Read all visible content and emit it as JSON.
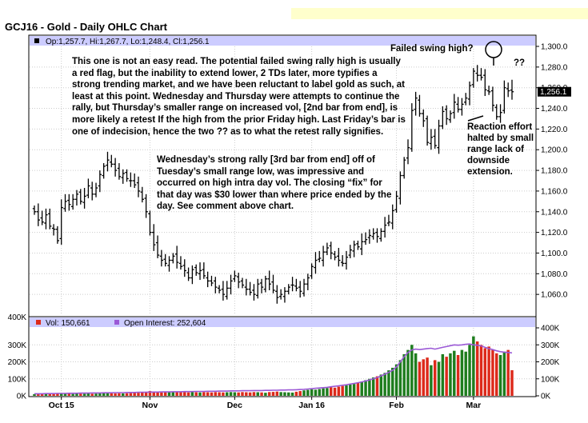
{
  "title": "GCJ16 - Gold - Daily OHLC Chart",
  "price_info": {
    "open": "Op:1,257.7,",
    "high": "Hi:1,267.7,",
    "low": "Lo:1,248.4,",
    "close": "Cl:1,256.1"
  },
  "last_price_tag": "1,256.1",
  "volume_legend": {
    "vol": "Vol: 150,661",
    "oi": "Open Interest: 252,604"
  },
  "annotations": {
    "main_comment": "This one is not an easy read.  The potential failed swing rally high is usually a red flag, but the inability to extend lower, 2 TDs later, more typifies a strong trending market, and we have been reluctant to label gold as such, at least at this point.  Wednesday and Thursday were attempts to continue the rally, but Thursday’s smaller range on increased vol, [2nd bar from end], is more likely a retest If the high from the prior Friday high.  Last Friday’s bar is one of indecision, hence the two ?? as to what the retest rally signifies.",
    "wednesday_comment": "Wednesday’s strong rally [3rd bar from end] off of Tuesday’s small range low, was impressive and occurred on high intra day vol.  The closing “fix” for that day was $30 lower than where price ended by the day.  See comment above chart.",
    "failed_swing": "Failed swing high?",
    "question_marks": "??",
    "reaction": "Reaction effort halted by small range lack of downside extension."
  },
  "colors": {
    "up_volume": "#1e7d1e",
    "down_volume": "#dd2a1b",
    "open_interest": "#9b59d6",
    "legend_bar": "#ccccff",
    "tag_bg": "#000000"
  },
  "chart_data": [
    {
      "type": "ohlc",
      "title": "GCJ16 - Gold - Daily OHLC Chart",
      "xlabel": "",
      "ylabel": "",
      "x_tick_labels": [
        "Oct 15",
        "Nov",
        "Dec",
        "Jan 16",
        "Feb",
        "Mar"
      ],
      "x_tick_index": [
        7,
        30,
        52,
        72,
        94,
        114
      ],
      "y_ticks": [
        1060,
        1080,
        1100,
        1120,
        1140,
        1160,
        1180,
        1200,
        1220,
        1240,
        1260,
        1280,
        1300
      ],
      "y_tick_labels": [
        "1,060.0",
        "1,080.0",
        "1,100.0",
        "1,120.0",
        "1,140.0",
        "1,160.0",
        "1,180.0",
        "1,200.0",
        "1,220.0",
        "1,240.0",
        "1,260.0",
        "1,280.0",
        "1,300.0"
      ],
      "ylim": [
        1040,
        1300
      ],
      "grid": true,
      "close": [
        1140,
        1132,
        1130,
        1137,
        1126,
        1123,
        1112,
        1144,
        1150,
        1147,
        1152,
        1157,
        1150,
        1155,
        1165,
        1157,
        1163,
        1176,
        1184,
        1190,
        1186,
        1180,
        1174,
        1177,
        1172,
        1170,
        1166,
        1160,
        1152,
        1140,
        1120,
        1108,
        1098,
        1093,
        1090,
        1093,
        1097,
        1091,
        1087,
        1083,
        1076,
        1084,
        1081,
        1083,
        1078,
        1073,
        1071,
        1067,
        1064,
        1060,
        1066,
        1073,
        1078,
        1072,
        1069,
        1065,
        1062,
        1060,
        1070,
        1067,
        1075,
        1070,
        1064,
        1057,
        1060,
        1063,
        1067,
        1069,
        1066,
        1063,
        1070,
        1076,
        1087,
        1093,
        1095,
        1101,
        1105,
        1100,
        1096,
        1093,
        1090,
        1096,
        1103,
        1108,
        1106,
        1111,
        1113,
        1117,
        1119,
        1116,
        1121,
        1127,
        1130,
        1141,
        1155,
        1175,
        1190,
        1202,
        1238,
        1250,
        1235,
        1228,
        1207,
        1212,
        1204,
        1223,
        1237,
        1230,
        1235,
        1246,
        1239,
        1244,
        1250,
        1262,
        1276,
        1272,
        1270,
        1258,
        1256,
        1243,
        1232,
        1236,
        1260,
        1257,
        1256
      ],
      "range_high": 1267.7,
      "range_low": 1048.4,
      "last_bar": {
        "open": 1257.7,
        "high": 1267.7,
        "low": 1248.4,
        "close": 1256.1
      }
    },
    {
      "type": "bar",
      "title": "",
      "series": [
        {
          "name": "Vol: 150,661",
          "values": [
            10,
            11,
            10,
            12,
            11,
            10,
            12,
            12,
            13,
            12,
            11,
            13,
            12,
            12,
            14,
            12,
            13,
            15,
            15,
            16,
            14,
            14,
            15,
            14,
            15,
            16,
            17,
            18,
            20,
            24,
            28,
            26,
            22,
            20,
            21,
            22,
            24,
            23,
            22,
            21,
            20,
            22,
            21,
            20,
            22,
            21,
            20,
            22,
            21,
            20,
            21,
            22,
            21,
            20,
            22,
            21,
            20,
            22,
            21,
            20,
            18,
            22,
            23,
            25,
            22,
            21,
            20,
            19,
            24,
            28,
            32,
            35,
            38,
            36,
            40,
            44,
            46,
            50,
            48,
            54,
            58,
            62,
            66,
            70,
            78,
            84,
            92,
            100,
            108,
            115,
            125,
            135,
            150,
            165,
            185,
            210,
            245,
            270,
            300,
            250,
            200,
            215,
            225,
            180,
            210,
            200,
            245,
            230,
            250,
            265,
            240,
            270,
            260,
            300,
            350,
            320,
            300,
            280,
            290,
            270,
            250,
            240,
            260,
            270,
            150.661
          ]
        }
      ],
      "open_interest": {
        "name": "Open Interest: 252,604",
        "values": [
          12,
          12,
          12,
          13,
          13,
          13,
          14,
          14,
          14,
          15,
          15,
          15,
          16,
          16,
          16,
          17,
          17,
          17,
          18,
          18,
          18,
          19,
          19,
          19,
          20,
          20,
          20,
          21,
          21,
          21,
          22,
          22,
          22,
          23,
          23,
          23,
          24,
          24,
          24,
          25,
          25,
          25,
          26,
          26,
          26,
          27,
          27,
          27,
          28,
          28,
          28,
          29,
          29,
          29,
          30,
          30,
          30,
          31,
          31,
          31,
          32,
          32,
          33,
          33,
          34,
          34,
          35,
          35,
          36,
          37,
          38,
          40,
          42,
          44,
          46,
          48,
          50,
          53,
          56,
          59,
          62,
          65,
          69,
          73,
          77,
          82,
          87,
          93,
          100,
          108,
          117,
          127,
          138,
          150,
          170,
          200,
          230,
          255,
          270,
          275,
          272,
          275,
          278,
          280,
          275,
          280,
          285,
          290,
          295,
          300,
          298,
          300,
          303,
          305,
          300,
          298,
          294,
          285,
          278,
          272,
          265,
          260,
          257,
          255,
          252.604
        ]
      },
      "y_ticks": [
        0,
        100,
        200,
        300,
        400
      ],
      "y_tick_labels_left": [
        "0K",
        "100K",
        "200K",
        "300K",
        "400K"
      ],
      "y_tick_labels_right": [
        "0K",
        "100K",
        "200K",
        "300K",
        "400K"
      ],
      "ylim": [
        0,
        400
      ]
    }
  ]
}
